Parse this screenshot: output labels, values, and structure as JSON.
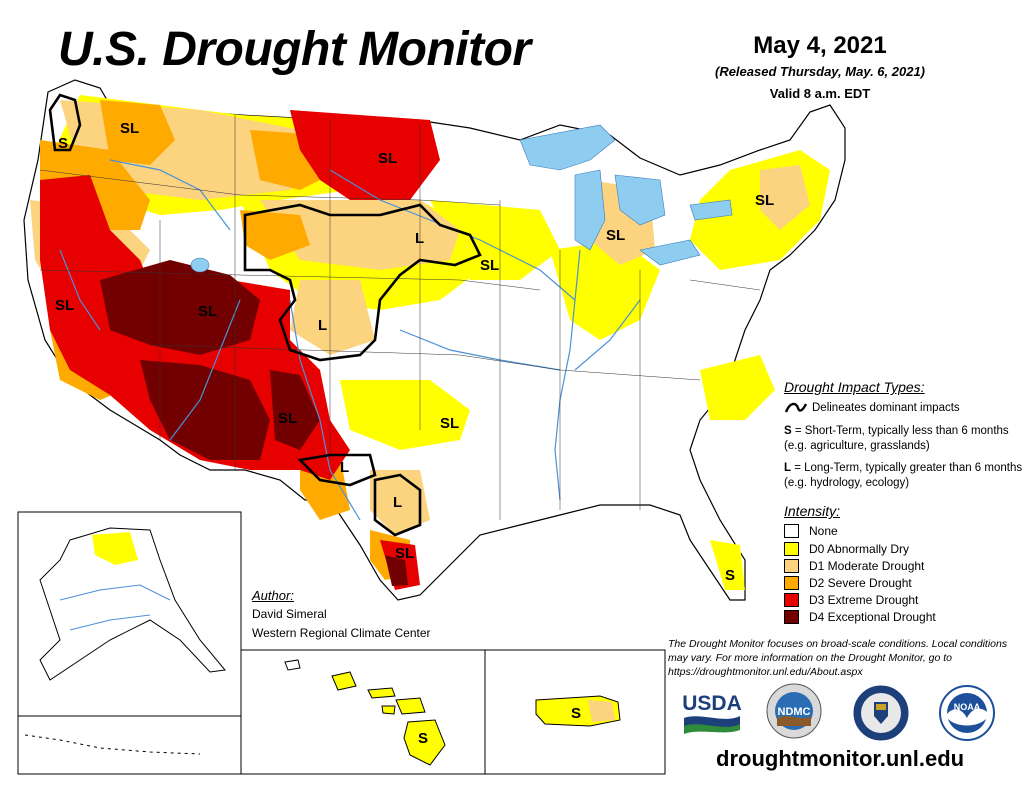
{
  "header": {
    "title": "U.S. Drought Monitor",
    "date": "May 4, 2021",
    "released": "(Released Thursday, May. 6, 2021)",
    "valid": "Valid 8 a.m. EDT"
  },
  "map_labels": {
    "s_oregon": "S",
    "sl_idaho": "SL",
    "sl_north_dakota": "SL",
    "sl_new_york": "SL",
    "sl_michigan": "SL",
    "l_nebraska": "L",
    "sl_iowa": "SL",
    "sl_california": "SL",
    "sl_utah": "SL",
    "l_colorado": "L",
    "sl_new_mexico": "SL",
    "sl_texas": "SL",
    "l_texas_west": "L",
    "l_texas_central": "L",
    "sl_texas_south": "SL",
    "s_florida": "S",
    "s_hawaii": "S",
    "s_puerto_rico": "S"
  },
  "impact_types": {
    "title": "Drought Impact Types:",
    "line_label": "Delineates dominant impacts",
    "short_term_key": "S",
    "short_term_text": " = Short-Term, typically less than 6 months (e.g. agriculture, grasslands)",
    "long_term_key": "L",
    "long_term_text": " = Long-Term, typically greater than 6 months (e.g. hydrology, ecology)"
  },
  "intensity": {
    "title": "Intensity:",
    "levels": [
      {
        "label": "None",
        "color": "#ffffff"
      },
      {
        "label": "D0 Abnormally Dry",
        "color": "#ffff00"
      },
      {
        "label": "D1 Moderate Drought",
        "color": "#fcd37f"
      },
      {
        "label": "D2 Severe Drought",
        "color": "#ffaa00"
      },
      {
        "label": "D3 Extreme Drought",
        "color": "#e60000"
      },
      {
        "label": "D4 Exceptional Drought",
        "color": "#730000"
      }
    ]
  },
  "author": {
    "title": "Author:",
    "name": "David Simeral",
    "org": "Western Regional Climate Center"
  },
  "note": "The Drought Monitor focuses on broad-scale conditions. Local conditions may vary. For more information on the Drought Monitor, go to https://droughtmonitor.unl.edu/About.aspx",
  "logos": {
    "usda": "USDA",
    "ndmc": "NDMC",
    "noaa": "NOAA"
  },
  "website": "droughtmonitor.unl.edu",
  "colors": {
    "none": "#ffffff",
    "d0": "#ffff00",
    "d1": "#fcd37f",
    "d2": "#ffaa00",
    "d3": "#e60000",
    "d4": "#730000",
    "water": "#8ecdf0",
    "river": "#4a90d9"
  }
}
